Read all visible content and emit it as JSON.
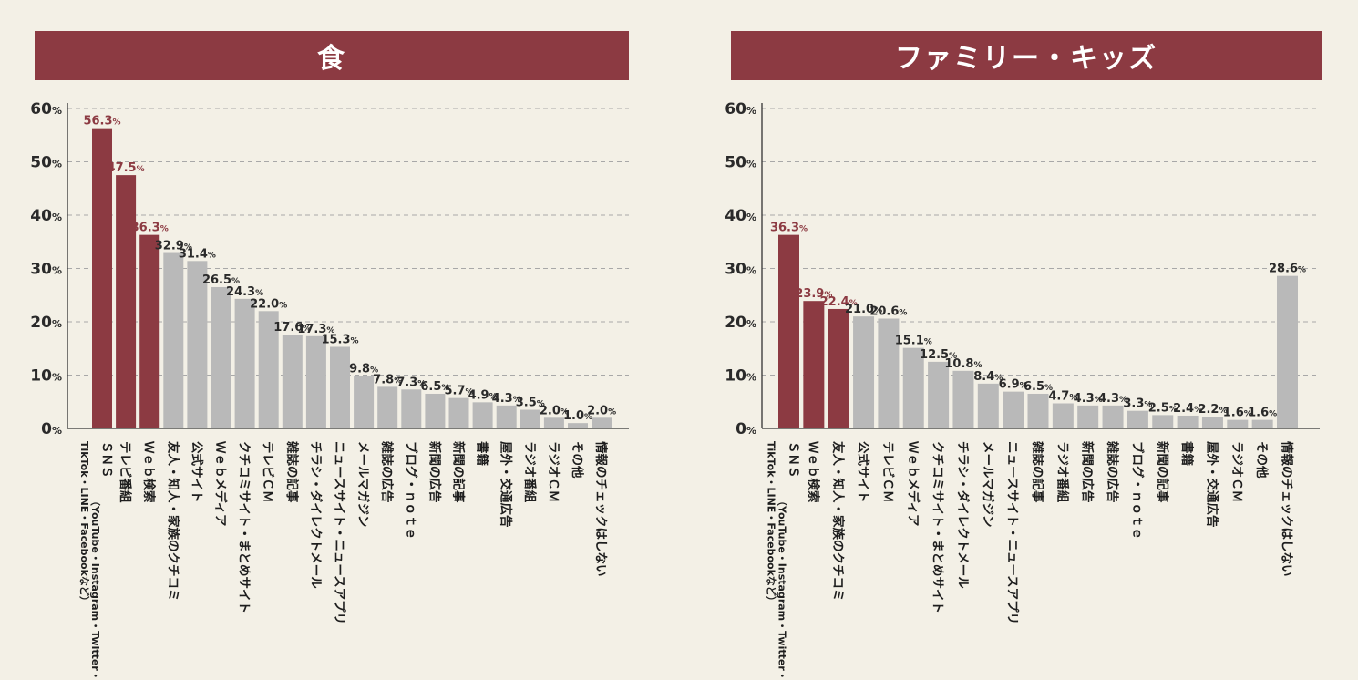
{
  "chart_data": [
    {
      "type": "bar",
      "title": "食",
      "ylim": [
        0,
        60
      ],
      "yticks": [
        "0",
        "10",
        "20",
        "30",
        "40",
        "50",
        "60"
      ],
      "ytick_unit": "%",
      "value_unit": "%",
      "grid": "dashed horizontal",
      "colors": {
        "highlight": "#8c3a42",
        "normal": "#b9b9b9"
      },
      "categories": [
        [
          "ＳＮＳ",
          "（YouTube・Instagram・Twitter・",
          "TikTok・LINE・Facebookなど）"
        ],
        [
          "テレビ番組"
        ],
        [
          "Ｗｅｂ検索"
        ],
        [
          "友人・知人・家族のクチコミ"
        ],
        [
          "公式サイト"
        ],
        [
          "Ｗｅｂメディア"
        ],
        [
          "クチコミサイト・まとめサイト"
        ],
        [
          "テレビＣＭ"
        ],
        [
          "雑誌の記事"
        ],
        [
          "チラシ・ダイレクトメール"
        ],
        [
          "ニュースサイト・ニュースアプリ"
        ],
        [
          "メールマガジン"
        ],
        [
          "雑誌の広告"
        ],
        [
          "ブログ・ｎｏｔｅ"
        ],
        [
          "新聞の広告"
        ],
        [
          "新聞の記事"
        ],
        [
          "書籍"
        ],
        [
          "屋外・交通広告"
        ],
        [
          "ラジオ番組"
        ],
        [
          "ラジオＣＭ"
        ],
        [
          "その他"
        ],
        [
          "情報のチェックはしない"
        ]
      ],
      "values": [
        56.3,
        47.5,
        36.3,
        32.9,
        31.4,
        26.5,
        24.3,
        22.0,
        17.6,
        17.3,
        15.3,
        9.8,
        7.8,
        7.3,
        6.5,
        5.7,
        4.9,
        4.3,
        3.5,
        2.0,
        1.0,
        2.0
      ],
      "labels": [
        "56.3",
        "47.5",
        "36.3",
        "32.9",
        "31.4",
        "26.5",
        "24.3",
        "22.0",
        "17.6",
        "17.3",
        "15.3",
        "9.8",
        "7.8",
        "7.3",
        "6.5",
        "5.7",
        "4.9",
        "4.3",
        "3.5",
        "2.0",
        "1.0",
        "2.0"
      ],
      "highlight": [
        true,
        true,
        true,
        false,
        false,
        false,
        false,
        false,
        false,
        false,
        false,
        false,
        false,
        false,
        false,
        false,
        false,
        false,
        false,
        false,
        false,
        false
      ]
    },
    {
      "type": "bar",
      "title": "ファミリー・キッズ",
      "ylim": [
        0,
        60
      ],
      "yticks": [
        "0",
        "10",
        "20",
        "30",
        "40",
        "50",
        "60"
      ],
      "ytick_unit": "%",
      "value_unit": "%",
      "grid": "dashed horizontal",
      "colors": {
        "highlight": "#8c3a42",
        "normal": "#b9b9b9"
      },
      "categories": [
        [
          "ＳＮＳ",
          "（YouTube・Instagram・Twitter・",
          "TikTok・LINE・Facebookなど）"
        ],
        [
          "Ｗｅｂ検索"
        ],
        [
          "友人・知人・家族のクチコミ"
        ],
        [
          "公式サイト"
        ],
        [
          "テレビＣＭ"
        ],
        [
          "Ｗｅｂメディア"
        ],
        [
          "クチコミサイト・まとめサイト"
        ],
        [
          "チラシ・ダイレクトメール"
        ],
        [
          "メールマガジン"
        ],
        [
          "ニュースサイト・ニュースアプリ"
        ],
        [
          "雑誌の記事"
        ],
        [
          "ラジオ番組"
        ],
        [
          "新聞の広告"
        ],
        [
          "雑誌の広告"
        ],
        [
          "ブログ・ｎｏｔｅ"
        ],
        [
          "新聞の記事"
        ],
        [
          "書籍"
        ],
        [
          "屋外・交通広告"
        ],
        [
          "ラジオＣＭ"
        ],
        [
          "その他"
        ],
        [
          "情報のチェックはしない"
        ]
      ],
      "values": [
        36.3,
        23.9,
        22.4,
        21.0,
        20.6,
        15.1,
        12.5,
        10.8,
        8.4,
        6.9,
        6.5,
        4.7,
        4.3,
        4.3,
        3.3,
        2.5,
        2.4,
        2.2,
        1.6,
        1.6,
        28.6
      ],
      "labels": [
        "36.3",
        "23.9",
        "22.4",
        "21.0",
        "20.6",
        "15.1",
        "12.5",
        "10.8",
        "8.4",
        "6.9",
        "6.5",
        "4.7",
        "4.3",
        "4.3",
        "3.3",
        "2.5",
        "2.4",
        "2.2",
        "1.6",
        "1.6",
        "28.6"
      ],
      "highlight": [
        true,
        true,
        true,
        false,
        false,
        false,
        false,
        false,
        false,
        false,
        false,
        false,
        false,
        false,
        false,
        false,
        false,
        false,
        false,
        false,
        false
      ]
    }
  ]
}
